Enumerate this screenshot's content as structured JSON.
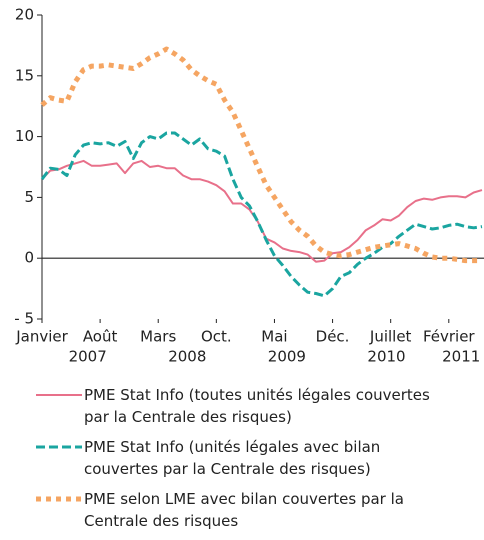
{
  "chart_data": {
    "type": "line",
    "categories": [
      "Janvier",
      null,
      null,
      null,
      null,
      null,
      null,
      "Août",
      null,
      null,
      null,
      null,
      null,
      null,
      "Mars",
      null,
      null,
      null,
      null,
      null,
      null,
      "Oct.",
      null,
      null,
      null,
      null,
      null,
      null,
      "Mai",
      null,
      null,
      null,
      null,
      null,
      null,
      "Déc.",
      null,
      null,
      null,
      null,
      null,
      null,
      "Juillet",
      null,
      null,
      null,
      null,
      null,
      null,
      "Février",
      null,
      null,
      null,
      null
    ],
    "year_labels": [
      "2007",
      "2008",
      "2009",
      "2010",
      "2011"
    ],
    "ylim": [
      -5,
      20
    ],
    "yticks": [
      {
        "value": -5,
        "label": "- 5"
      },
      0,
      5,
      10,
      15,
      20
    ],
    "series": [
      {
        "name": "PME Stat Info (toutes unités légales couvertes par la Centrale des risques)",
        "color": "#e8708a",
        "style": "solid",
        "values": [
          6.5,
          7.2,
          7.3,
          7.6,
          7.8,
          8.0,
          7.6,
          7.6,
          7.7,
          7.8,
          7.0,
          7.8,
          8.0,
          7.5,
          7.6,
          7.4,
          7.4,
          6.8,
          6.5,
          6.5,
          6.3,
          6.0,
          5.5,
          4.5,
          4.5,
          4.0,
          3.0,
          1.6,
          1.3,
          0.8,
          0.6,
          0.5,
          0.3,
          -0.3,
          -0.2,
          0.4,
          0.5,
          0.9,
          1.5,
          2.3,
          2.7,
          3.2,
          3.1,
          3.5,
          4.2,
          4.7,
          4.9,
          4.8,
          5.0,
          5.1,
          5.1,
          5.0,
          5.4,
          5.6
        ]
      },
      {
        "name": "PME Stat Info (unités légales avec bilan couvertes par la Centrale des risques)",
        "color": "#1aa5a0",
        "style": "dashed",
        "values": [
          6.5,
          7.4,
          7.3,
          6.8,
          8.5,
          9.3,
          9.5,
          9.4,
          9.5,
          9.2,
          9.6,
          8.2,
          9.5,
          10.0,
          9.8,
          10.3,
          10.3,
          9.8,
          9.3,
          9.8,
          9.0,
          8.8,
          8.4,
          6.5,
          5.0,
          4.3,
          3.0,
          1.5,
          0.2,
          -0.6,
          -1.5,
          -2.2,
          -2.8,
          -2.9,
          -3.1,
          -2.5,
          -1.5,
          -1.2,
          -0.5,
          0,
          0.4,
          0.9,
          1.2,
          1.8,
          2.3,
          2.8,
          2.6,
          2.4,
          2.5,
          2.7,
          2.8,
          2.6,
          2.5,
          2.6
        ]
      },
      {
        "name": "PME selon LME avec bilan couvertes par la Centrale des risques",
        "color": "#f5a562",
        "style": "dotted",
        "values": [
          12.6,
          13.2,
          13.0,
          12.9,
          14.5,
          15.5,
          15.8,
          15.8,
          15.9,
          15.8,
          15.7,
          15.6,
          16.0,
          16.5,
          16.8,
          17.2,
          16.8,
          16.3,
          15.5,
          15.0,
          14.6,
          14.3,
          13.0,
          12.0,
          10.5,
          9.0,
          7.5,
          6.0,
          5.0,
          4.0,
          3.0,
          2.3,
          1.8,
          1.0,
          0.5,
          0.3,
          0.2,
          0.3,
          0.5,
          0.7,
          0.9,
          1.0,
          1.1,
          1.2,
          1.0,
          0.8,
          0.4,
          0.1,
          0.0,
          0.0,
          -0.1,
          -0.2,
          -0.2,
          -0.2
        ]
      }
    ]
  }
}
